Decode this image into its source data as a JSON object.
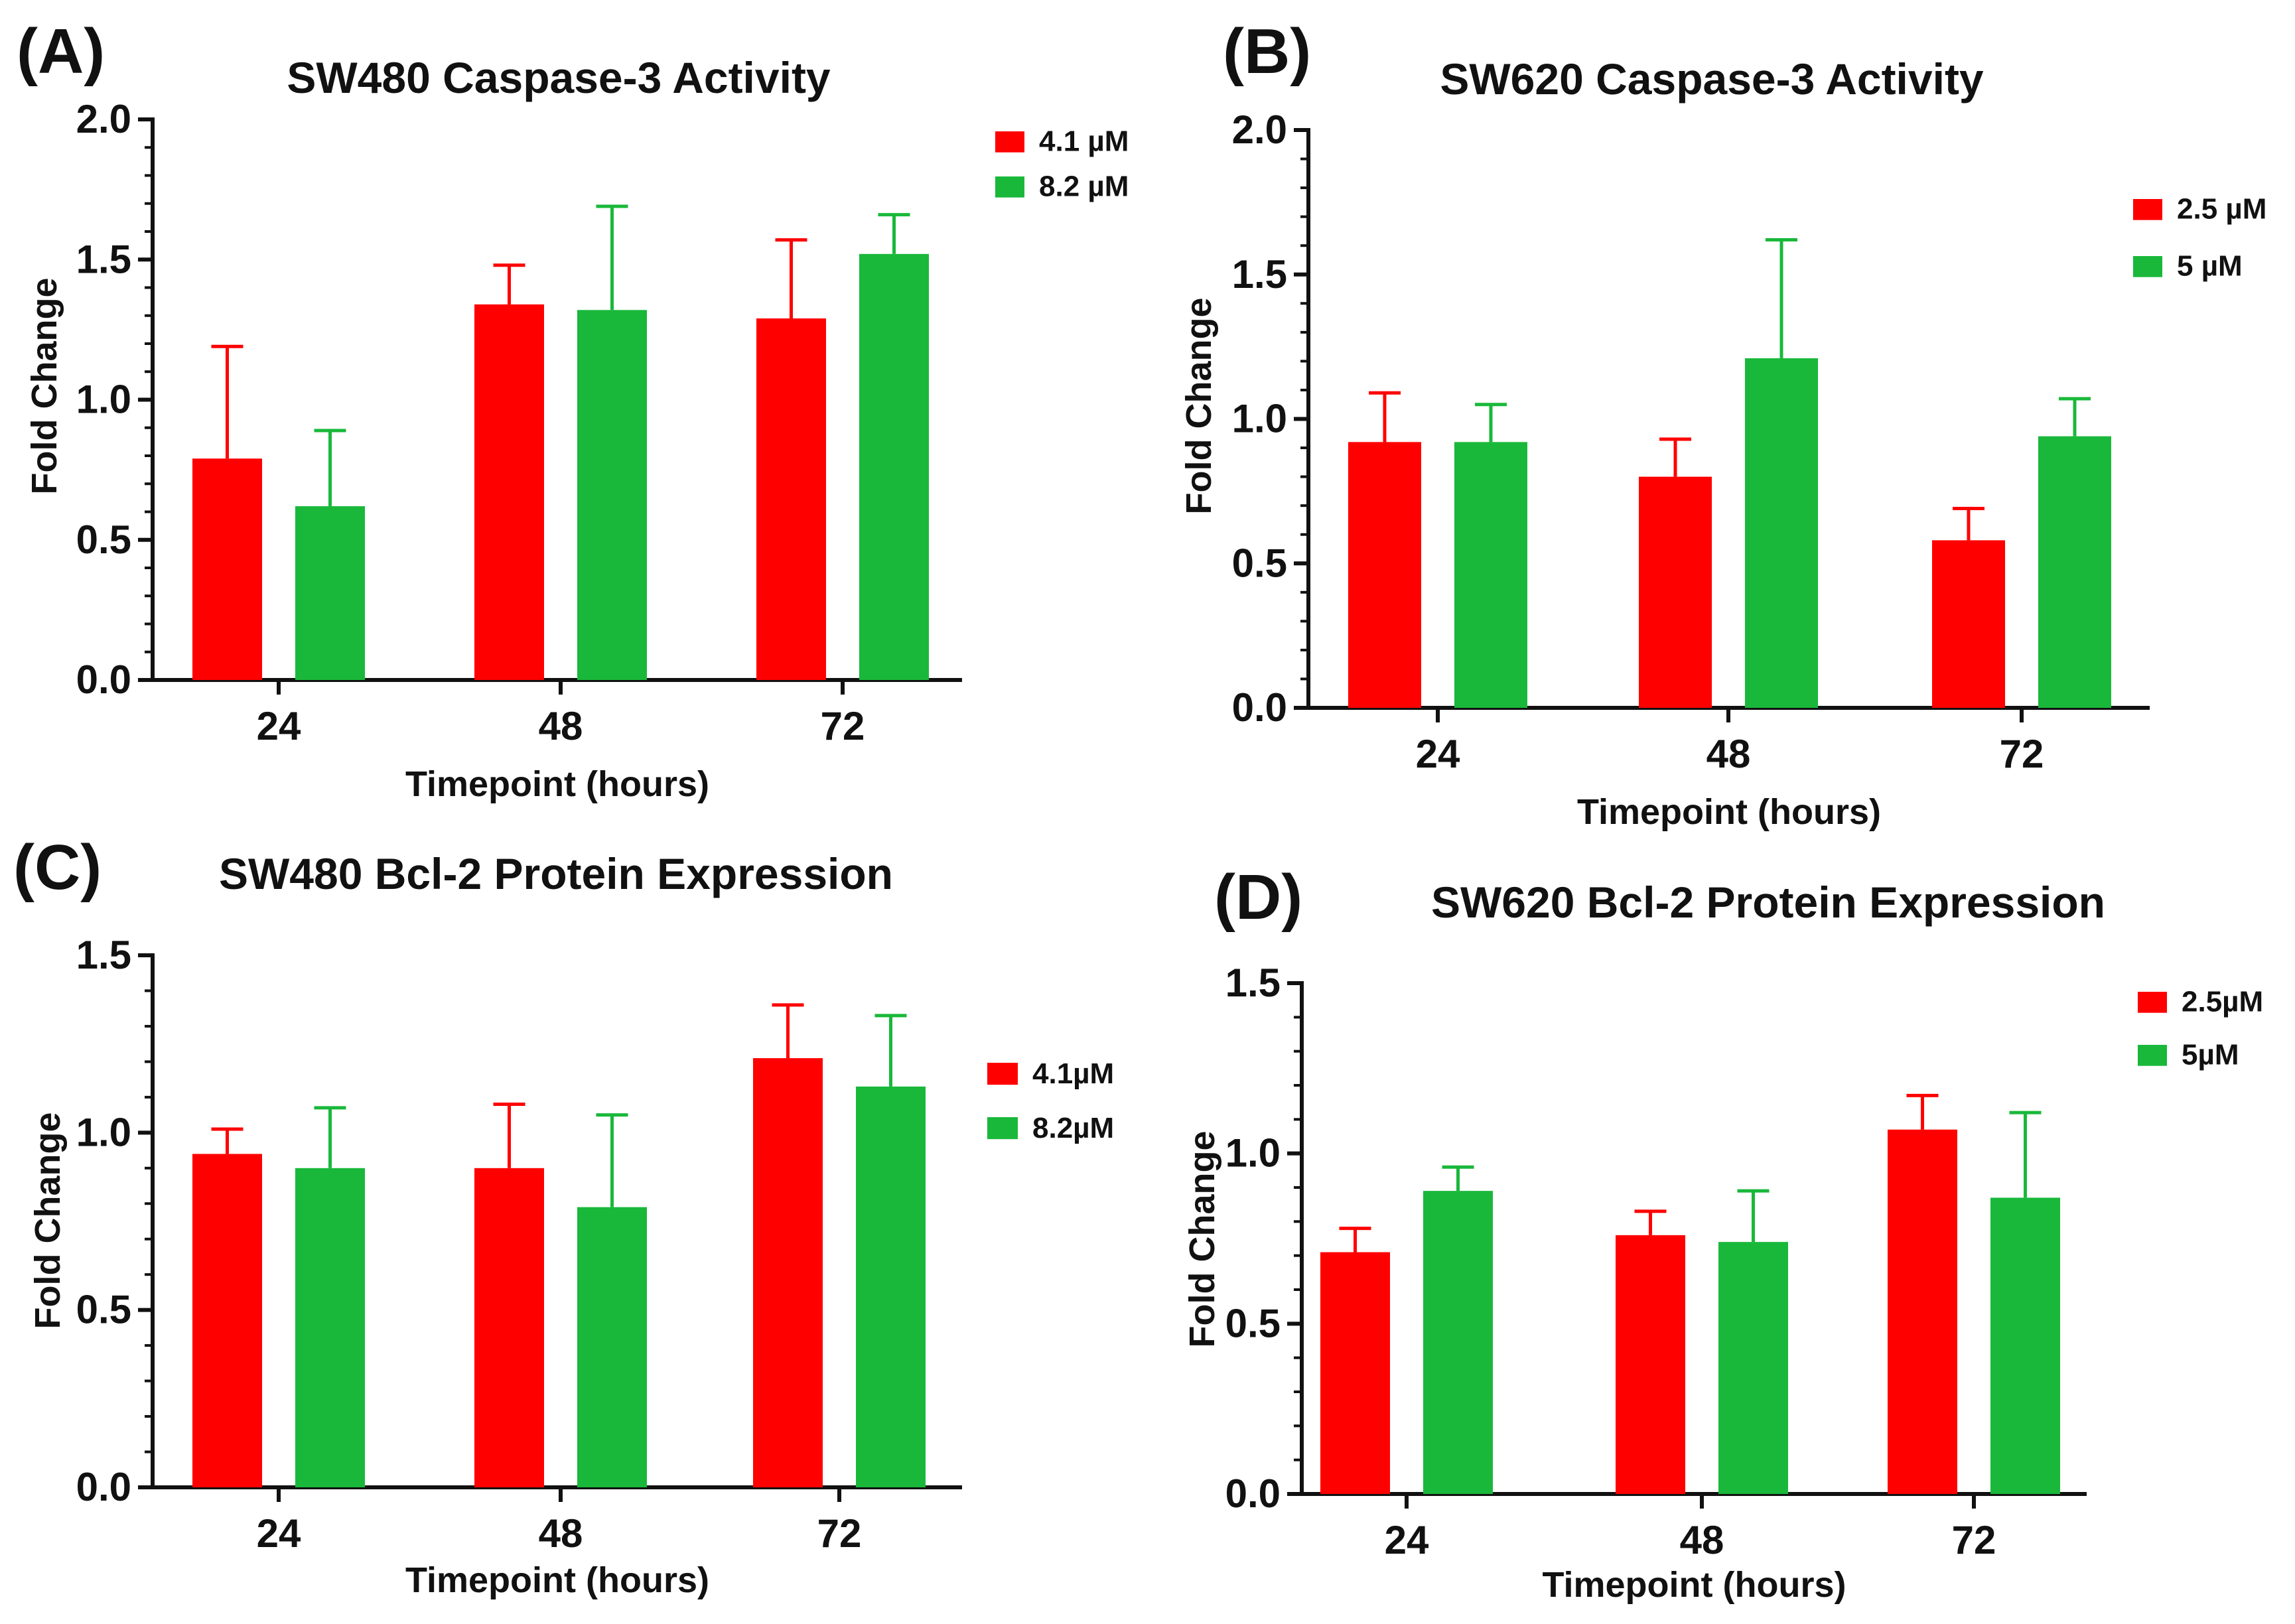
{
  "colors": {
    "red": "#ff0000",
    "green": "#19b83a",
    "axis": "#111111"
  },
  "chart_data": [
    {
      "panel": "(A)",
      "type": "bar",
      "title": "SW480 Caspase-3 Activity",
      "xlabel": "Timepoint (hours)",
      "ylabel": "Fold Change",
      "categories": [
        "24",
        "48",
        "72"
      ],
      "ylim": [
        0,
        2.0
      ],
      "yticks": [
        "0.0",
        "0.5",
        "1.0",
        "1.5",
        "2.0"
      ],
      "series": [
        {
          "name": "4.1 µM",
          "values": [
            0.79,
            1.34,
            1.29
          ],
          "errors": [
            0.4,
            0.14,
            0.28
          ]
        },
        {
          "name": "8.2 µM",
          "values": [
            0.62,
            1.32,
            1.52
          ],
          "errors": [
            0.27,
            0.37,
            0.14
          ]
        }
      ]
    },
    {
      "panel": "(B)",
      "type": "bar",
      "title": "SW620 Caspase-3 Activity",
      "xlabel": "Timepoint (hours)",
      "ylabel": "Fold Change",
      "categories": [
        "24",
        "48",
        "72"
      ],
      "ylim": [
        0,
        2.0
      ],
      "yticks": [
        "0.0",
        "0.5",
        "1.0",
        "1.5",
        "2.0"
      ],
      "series": [
        {
          "name": "2.5 µM",
          "values": [
            0.92,
            0.8,
            0.58
          ],
          "errors": [
            0.17,
            0.13,
            0.11
          ]
        },
        {
          "name": "5 µM",
          "values": [
            0.92,
            1.21,
            0.94
          ],
          "errors": [
            0.13,
            0.41,
            0.13
          ]
        }
      ]
    },
    {
      "panel": "(C)",
      "type": "bar",
      "title": "SW480 Bcl-2 Protein Expression",
      "xlabel": "Timepoint (hours)",
      "ylabel": "Fold Change",
      "categories": [
        "24",
        "48",
        "72"
      ],
      "ylim": [
        0,
        1.5
      ],
      "yticks": [
        "0.0",
        "0.5",
        "1.0",
        "1.5"
      ],
      "series": [
        {
          "name": "4.1µM",
          "values": [
            0.94,
            0.9,
            1.21
          ],
          "errors": [
            0.07,
            0.18,
            0.15
          ]
        },
        {
          "name": "8.2µM",
          "values": [
            0.9,
            0.79,
            1.13
          ],
          "errors": [
            0.17,
            0.26,
            0.2
          ]
        }
      ]
    },
    {
      "panel": "(D)",
      "type": "bar",
      "title": "SW620 Bcl-2 Protein Expression",
      "xlabel": "Timepoint (hours)",
      "ylabel": "Fold Change",
      "categories": [
        "24",
        "48",
        "72"
      ],
      "ylim": [
        0,
        1.5
      ],
      "yticks": [
        "0.0",
        "0.5",
        "1.0",
        "1.5"
      ],
      "series": [
        {
          "name": "2.5µM",
          "values": [
            0.71,
            0.76,
            1.07
          ],
          "errors": [
            0.07,
            0.07,
            0.1
          ]
        },
        {
          "name": "5µM",
          "values": [
            0.89,
            0.74,
            0.87
          ],
          "errors": [
            0.07,
            0.15,
            0.25
          ]
        }
      ]
    }
  ]
}
